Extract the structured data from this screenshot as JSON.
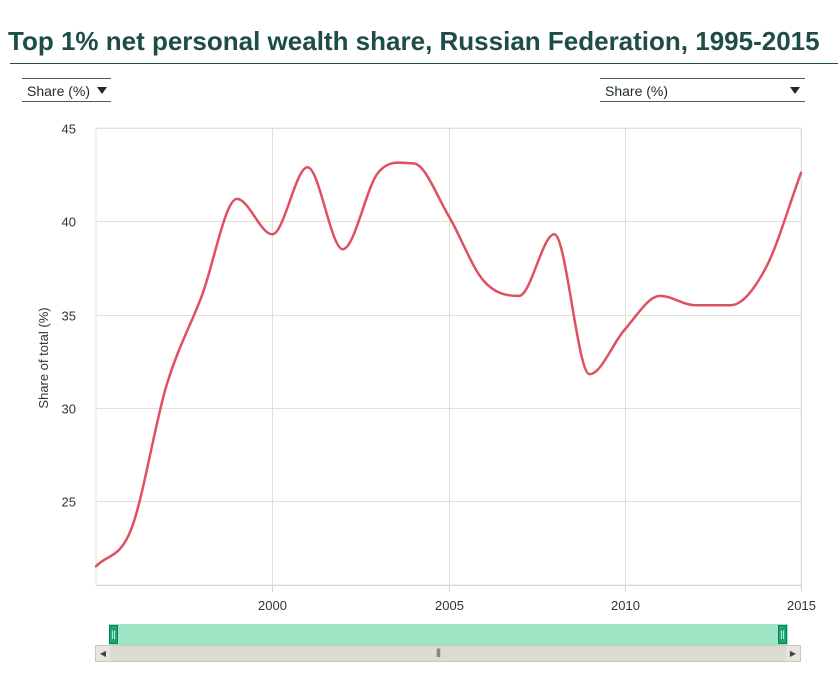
{
  "page_title": "Top 1% net personal wealth share, Russian Federation, 1995-2015",
  "controls": {
    "left_dropdown": "Share (%)",
    "right_dropdown": "Share (%)",
    "arrow_icon": "triangle-down-icon"
  },
  "navigator": {
    "left_handle_grip": "||",
    "right_handle_grip": "||",
    "scroll_left_glyph": "◀",
    "scroll_right_glyph": "▶",
    "scroll_grip_glyph": "|||"
  },
  "chart_data": {
    "type": "line",
    "title": "Top 1% net personal wealth share, Russian Federation, 1995-2015",
    "xlabel": "",
    "ylabel": "Share of total (%)",
    "xlim": [
      1995,
      2015
    ],
    "ylim": [
      20.5,
      45
    ],
    "x_ticks": [
      2000,
      2005,
      2010,
      2015
    ],
    "y_ticks": [
      25,
      30,
      35,
      40,
      45
    ],
    "grid": true,
    "line_color": "#e05060",
    "series": [
      {
        "x": [
          1995,
          1996,
          1997,
          1998,
          1999,
          2000,
          2001,
          2002,
          2003,
          2004,
          2005,
          2006,
          2007,
          2008,
          2009,
          2010,
          2011,
          2012,
          2013,
          2014,
          2015
        ],
        "values": [
          21.5,
          23.5,
          31.2,
          36.0,
          41.2,
          39.3,
          42.9,
          38.5,
          42.6,
          43.1,
          40.3,
          36.8,
          36.0,
          39.3,
          31.8,
          34.2,
          36.0,
          35.5,
          35.5,
          37.5,
          42.6
        ]
      }
    ]
  }
}
